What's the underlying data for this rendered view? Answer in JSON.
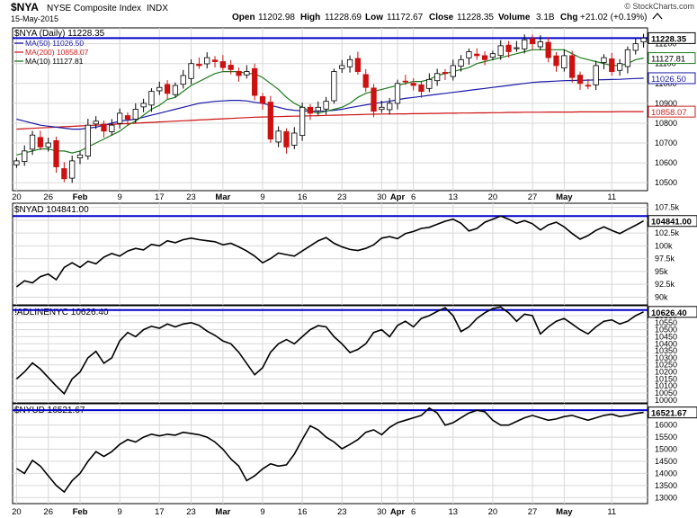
{
  "header": {
    "symbol": "$NYA",
    "name": "NYSE Composite Index",
    "exchange": "INDX",
    "date": "15-May-2015",
    "open_label": "Open",
    "open": "11202.98",
    "high_label": "High",
    "high": "11228.69",
    "low_label": "Low",
    "low": "11172.67",
    "close_label": "Close",
    "close": "11228.35",
    "volume_label": "Volume",
    "volume": "3.1B",
    "chg_label": "Chg",
    "chg": "+21.02 (+0.19%)",
    "watermark": "© StockCharts.com"
  },
  "x_labels": [
    {
      "label": "20",
      "i": 0
    },
    {
      "label": "26",
      "i": 4
    },
    {
      "label": "Feb",
      "i": 8,
      "bold": true
    },
    {
      "label": "9",
      "i": 13
    },
    {
      "label": "17",
      "i": 18
    },
    {
      "label": "23",
      "i": 22
    },
    {
      "label": "Mar",
      "i": 26,
      "bold": true
    },
    {
      "label": "9",
      "i": 31
    },
    {
      "label": "16",
      "i": 36
    },
    {
      "label": "23",
      "i": 41
    },
    {
      "label": "30",
      "i": 46
    },
    {
      "label": "Apr",
      "i": 48,
      "bold": true
    },
    {
      "label": "6",
      "i": 50
    },
    {
      "label": "13",
      "i": 55
    },
    {
      "label": "20",
      "i": 60
    },
    {
      "label": "27",
      "i": 65
    },
    {
      "label": "May",
      "i": 69,
      "bold": true
    },
    {
      "label": "11",
      "i": 75
    }
  ],
  "chart_data": [
    {
      "type": "candlestick",
      "title": "$NYA (Daily) 11228.35",
      "legend": [
        {
          "name": "MA(50) 11026.50",
          "color": "#1a1aa8"
        },
        {
          "name": "MA(200) 10858.07",
          "color": "#cc2222"
        },
        {
          "name": "MA(10) 11127.81",
          "color": "#1d7a1d"
        }
      ],
      "y_ticks": [
        10500,
        10600,
        10700,
        10800,
        10900,
        11000,
        11100,
        11200
      ],
      "ylim": [
        10460,
        11280
      ],
      "y_badges": [
        {
          "label": "11228.35",
          "value": 11228.35,
          "color": "#000000"
        },
        {
          "label": "11127.81",
          "value": 11127.81,
          "color": "#1d7a1d"
        },
        {
          "label": "11026.50",
          "value": 11026.5,
          "color": "#1a1aa8"
        },
        {
          "label": "10858.07",
          "value": 10858.07,
          "color": "#cc2222"
        }
      ],
      "hline": 11228.35,
      "closes": [
        10610,
        10660,
        10740,
        10680,
        10700,
        10580,
        10520,
        10610,
        10640,
        10790,
        10810,
        10760,
        10790,
        10850,
        10820,
        10870,
        10900,
        10960,
        10980,
        10950,
        10990,
        11040,
        11100,
        11090,
        11130,
        11110,
        11080,
        11070,
        11040,
        11060,
        10940,
        10900,
        10720,
        10760,
        10680,
        10750,
        10880,
        10850,
        10880,
        10910,
        11060,
        11090,
        11120,
        11060,
        10980,
        10860,
        10880,
        10900,
        11000,
        11010,
        10990,
        10960,
        11020,
        11050,
        11050,
        11090,
        11120,
        11160,
        11140,
        11120,
        11150,
        11190,
        11160,
        11180,
        11220,
        11200,
        11210,
        11130,
        11090,
        11140,
        11030,
        11000,
        10990,
        11090,
        11130,
        11060,
        11100,
        11170,
        11200,
        11228.35
      ],
      "ma10": [
        10640,
        10650,
        10660,
        10670,
        10670,
        10660,
        10660,
        10650,
        10660,
        10680,
        10700,
        10720,
        10740,
        10760,
        10790,
        10810,
        10840,
        10870,
        10890,
        10920,
        10930,
        10960,
        10990,
        11010,
        11030,
        11050,
        11060,
        11060,
        11060,
        11050,
        11050,
        11030,
        11000,
        10970,
        10930,
        10900,
        10880,
        10860,
        10850,
        10860,
        10870,
        10880,
        10900,
        10930,
        10950,
        10960,
        10970,
        10980,
        10990,
        11000,
        11010,
        11010,
        11020,
        11040,
        11050,
        11060,
        11070,
        11080,
        11100,
        11110,
        11120,
        11130,
        11140,
        11150,
        11160,
        11170,
        11170,
        11170,
        11170,
        11170,
        11150,
        11130,
        11120,
        11110,
        11100,
        11090,
        11090,
        11100,
        11120,
        11127.81
      ],
      "ma50": [
        10820,
        10810,
        10800,
        10790,
        10785,
        10780,
        10775,
        10770,
        10770,
        10775,
        10780,
        10790,
        10800,
        10810,
        10815,
        10820,
        10830,
        10840,
        10850,
        10860,
        10870,
        10880,
        10890,
        10900,
        10905,
        10910,
        10912,
        10915,
        10915,
        10912,
        10905,
        10900,
        10890,
        10880,
        10870,
        10865,
        10862,
        10860,
        10860,
        10862,
        10865,
        10870,
        10878,
        10885,
        10892,
        10898,
        10905,
        10910,
        10918,
        10925,
        10930,
        10935,
        10940,
        10945,
        10950,
        10955,
        10960,
        10965,
        10970,
        10975,
        10980,
        10985,
        10990,
        10995,
        11000,
        11005,
        11008,
        11010,
        11012,
        11014,
        11015,
        11016,
        11017,
        11018,
        11019,
        11020,
        11021,
        11023,
        11025,
        11026.5
      ],
      "ma200": [
        10770,
        10772,
        10774,
        10776,
        10778,
        10780,
        10782,
        10784,
        10786,
        10788,
        10790,
        10792,
        10794,
        10796,
        10798,
        10800,
        10802,
        10804,
        10806,
        10808,
        10810,
        10812,
        10814,
        10816,
        10818,
        10820,
        10822,
        10824,
        10826,
        10828,
        10830,
        10831,
        10832,
        10833,
        10834,
        10835,
        10836,
        10837,
        10838,
        10839,
        10840,
        10841,
        10842,
        10843,
        10844,
        10845,
        10846,
        10846,
        10847,
        10847,
        10848,
        10848,
        10849,
        10849,
        10850,
        10850,
        10851,
        10851,
        10852,
        10852,
        10853,
        10853,
        10854,
        10854,
        10855,
        10855,
        10855,
        10856,
        10856,
        10856,
        10856,
        10857,
        10857,
        10857,
        10857,
        10857,
        10858,
        10858,
        10858,
        10858.07
      ]
    },
    {
      "type": "line",
      "title": "$NYAD 104841.00",
      "y_ticks": [
        90000,
        92500,
        95000,
        97500,
        100000,
        102500,
        105000,
        107500
      ],
      "y_tick_labels": [
        "90k",
        "92.5k",
        "95k",
        "97.5k",
        "100k",
        "102.5k",
        "105k",
        "107.5k"
      ],
      "ylim": [
        88500,
        108300
      ],
      "badge": {
        "label": "104841.00",
        "value": 104841.0
      },
      "hline": 105800,
      "values": [
        92000,
        93200,
        92800,
        94000,
        94500,
        93400,
        95800,
        96700,
        95800,
        97000,
        96500,
        97800,
        98500,
        98000,
        99000,
        99500,
        99200,
        100300,
        100000,
        101000,
        100600,
        101200,
        101500,
        101200,
        101000,
        100800,
        100200,
        100500,
        99800,
        99000,
        98000,
        96700,
        97500,
        98600,
        98300,
        98000,
        99000,
        100000,
        101000,
        101600,
        100500,
        99800,
        99300,
        99100,
        99500,
        100200,
        101500,
        101800,
        101400,
        102400,
        102800,
        103400,
        103600,
        104200,
        104800,
        105200,
        104400,
        102900,
        103400,
        104600,
        105200,
        105800,
        105200,
        104400,
        104900,
        104300,
        103100,
        104100,
        104600,
        103700,
        102400,
        101300,
        102000,
        103000,
        103700,
        103000,
        102400,
        103200,
        104000,
        104841
      ]
    },
    {
      "type": "line",
      "title": "!ADLINENYC 10626.40",
      "y_ticks": [
        10000,
        10050,
        10100,
        10150,
        10200,
        10250,
        10300,
        10350,
        10400,
        10450,
        10500,
        10550,
        10600
      ],
      "ylim": [
        9980,
        10670
      ],
      "badge": {
        "label": "10626.40",
        "value": 10626.4
      },
      "hline": 10640,
      "values": [
        10150,
        10200,
        10263.6,
        10220,
        10160,
        10100,
        10045,
        10150,
        10200,
        10300,
        10346,
        10261.6,
        10300,
        10420,
        10480,
        10450,
        10500,
        10524.6,
        10510,
        10540,
        10520,
        10540,
        10550,
        10530,
        10490,
        10460,
        10420,
        10400,
        10340,
        10260,
        10180,
        10230,
        10340,
        10400,
        10430,
        10400,
        10450,
        10500,
        10528.9,
        10520,
        10450,
        10400,
        10337.3,
        10360,
        10400,
        10480,
        10500,
        10450,
        10530,
        10560,
        10520,
        10580,
        10600,
        10630,
        10655.7,
        10600,
        10486.6,
        10520,
        10580,
        10620,
        10650,
        10660.4,
        10620,
        10560,
        10610,
        10600,
        10470,
        10520,
        10560,
        10580,
        10540,
        10500,
        10470,
        10520,
        10560,
        10570,
        10540,
        10560,
        10600,
        10626.4
      ]
    },
    {
      "type": "line",
      "title": "$NYUD 16521.67",
      "y_ticks": [
        13000,
        13500,
        14000,
        14500,
        15000,
        15500,
        16000,
        16500
      ],
      "ylim": [
        12750,
        16880
      ],
      "badge": {
        "label": "16521.67",
        "value": 16521.67
      },
      "hline": 16613.7,
      "values": [
        14200,
        14000,
        14541.19,
        14300,
        13900,
        13500,
        13230.66,
        13700,
        14000,
        14500,
        14900,
        14700,
        14900,
        15200,
        15400,
        15300,
        15500,
        15623.68,
        15550,
        15620,
        15580,
        15700,
        15650,
        15600,
        15500,
        15300,
        15000,
        14600,
        14300,
        13701.54,
        13900,
        14185.94,
        14400,
        14300,
        14351.86,
        14800,
        15400,
        15966.84,
        15800,
        15500,
        15300,
        15018.82,
        15200,
        15400,
        15700,
        15800,
        15600,
        15900,
        16100,
        16200,
        16300,
        16400,
        16704.27,
        16500,
        15992.81,
        16100,
        16300,
        16500,
        16613.7,
        16550,
        16200,
        16000,
        15999.93,
        16150,
        16300,
        16400,
        16300,
        16200,
        16250,
        16350,
        16400,
        16300,
        16200,
        16300,
        16400,
        16450,
        16350,
        16400,
        16480,
        16521.67
      ]
    }
  ],
  "colors": {
    "up": "#1d7a1d",
    "down": "#cc1111",
    "hline": "#0000cc",
    "grid": "#d8d8d8",
    "price_line": "#000000",
    "sub_line": "#000000"
  }
}
